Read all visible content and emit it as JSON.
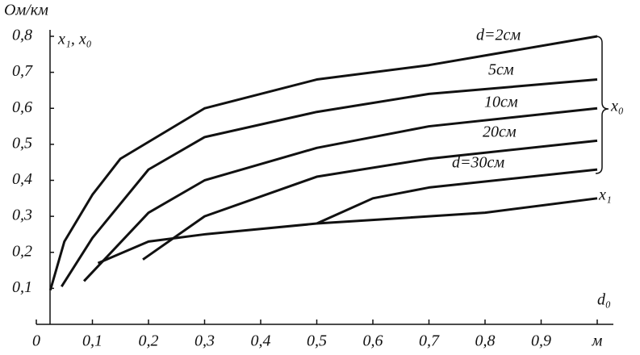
{
  "chart_data": {
    "type": "line",
    "y_unit_label": "Ом/км",
    "y_title": "x₁, x₀",
    "x_label": "d₀",
    "brace_label": "x₀",
    "xlim": [
      0,
      1.0
    ],
    "ylim": [
      0,
      0.8
    ],
    "xticks": [
      {
        "value": 0,
        "label": "0"
      },
      {
        "value": 0.1,
        "label": "0,1"
      },
      {
        "value": 0.2,
        "label": "0,2"
      },
      {
        "value": 0.3,
        "label": "0,3"
      },
      {
        "value": 0.4,
        "label": "0,4"
      },
      {
        "value": 0.5,
        "label": "0,5"
      },
      {
        "value": 0.6,
        "label": "0,6"
      },
      {
        "value": 0.7,
        "label": "0,7"
      },
      {
        "value": 0.8,
        "label": "0,8"
      },
      {
        "value": 0.9,
        "label": "0,9"
      },
      {
        "value": 1,
        "label": "м"
      }
    ],
    "yticks": [
      {
        "value": 0.1,
        "label": "0,1"
      },
      {
        "value": 0.2,
        "label": "0,2"
      },
      {
        "value": 0.3,
        "label": "0,3"
      },
      {
        "value": 0.4,
        "label": "0,4"
      },
      {
        "value": 0.5,
        "label": "0,5"
      },
      {
        "value": 0.6,
        "label": "0,6"
      },
      {
        "value": 0.7,
        "label": "0,7"
      },
      {
        "value": 0.8,
        "label": "0,8"
      }
    ],
    "series": [
      {
        "name": "d=2см",
        "color": "#111111",
        "x": [
          0.025,
          0.05,
          0.1,
          0.15,
          0.3,
          0.5,
          0.7,
          1.0
        ],
        "values": [
          0.095,
          0.23,
          0.36,
          0.46,
          0.6,
          0.68,
          0.72,
          0.8
        ]
      },
      {
        "name": "5см",
        "color": "#111111",
        "x": [
          0.045,
          0.1,
          0.2,
          0.3,
          0.5,
          0.7,
          1.0
        ],
        "values": [
          0.105,
          0.24,
          0.43,
          0.52,
          0.59,
          0.64,
          0.68
        ]
      },
      {
        "name": "10см",
        "color": "#111111",
        "x": [
          0.085,
          0.2,
          0.3,
          0.5,
          0.7,
          1.0
        ],
        "values": [
          0.12,
          0.31,
          0.4,
          0.49,
          0.55,
          0.6
        ]
      },
      {
        "name": "20см",
        "color": "#111111",
        "x": [
          0.19,
          0.3,
          0.5,
          0.7,
          1.0
        ],
        "values": [
          0.18,
          0.3,
          0.41,
          0.46,
          0.51
        ]
      },
      {
        "name": "d=30см",
        "color": "#111111",
        "x": [
          0.5,
          0.6,
          0.7,
          1.0
        ],
        "values": [
          0.28,
          0.35,
          0.38,
          0.43
        ]
      },
      {
        "name": "x₁",
        "color": "#111111",
        "x": [
          0.11,
          0.2,
          0.3,
          0.5,
          0.8,
          1.0
        ],
        "values": [
          0.17,
          0.23,
          0.25,
          0.28,
          0.31,
          0.35
        ]
      }
    ]
  }
}
